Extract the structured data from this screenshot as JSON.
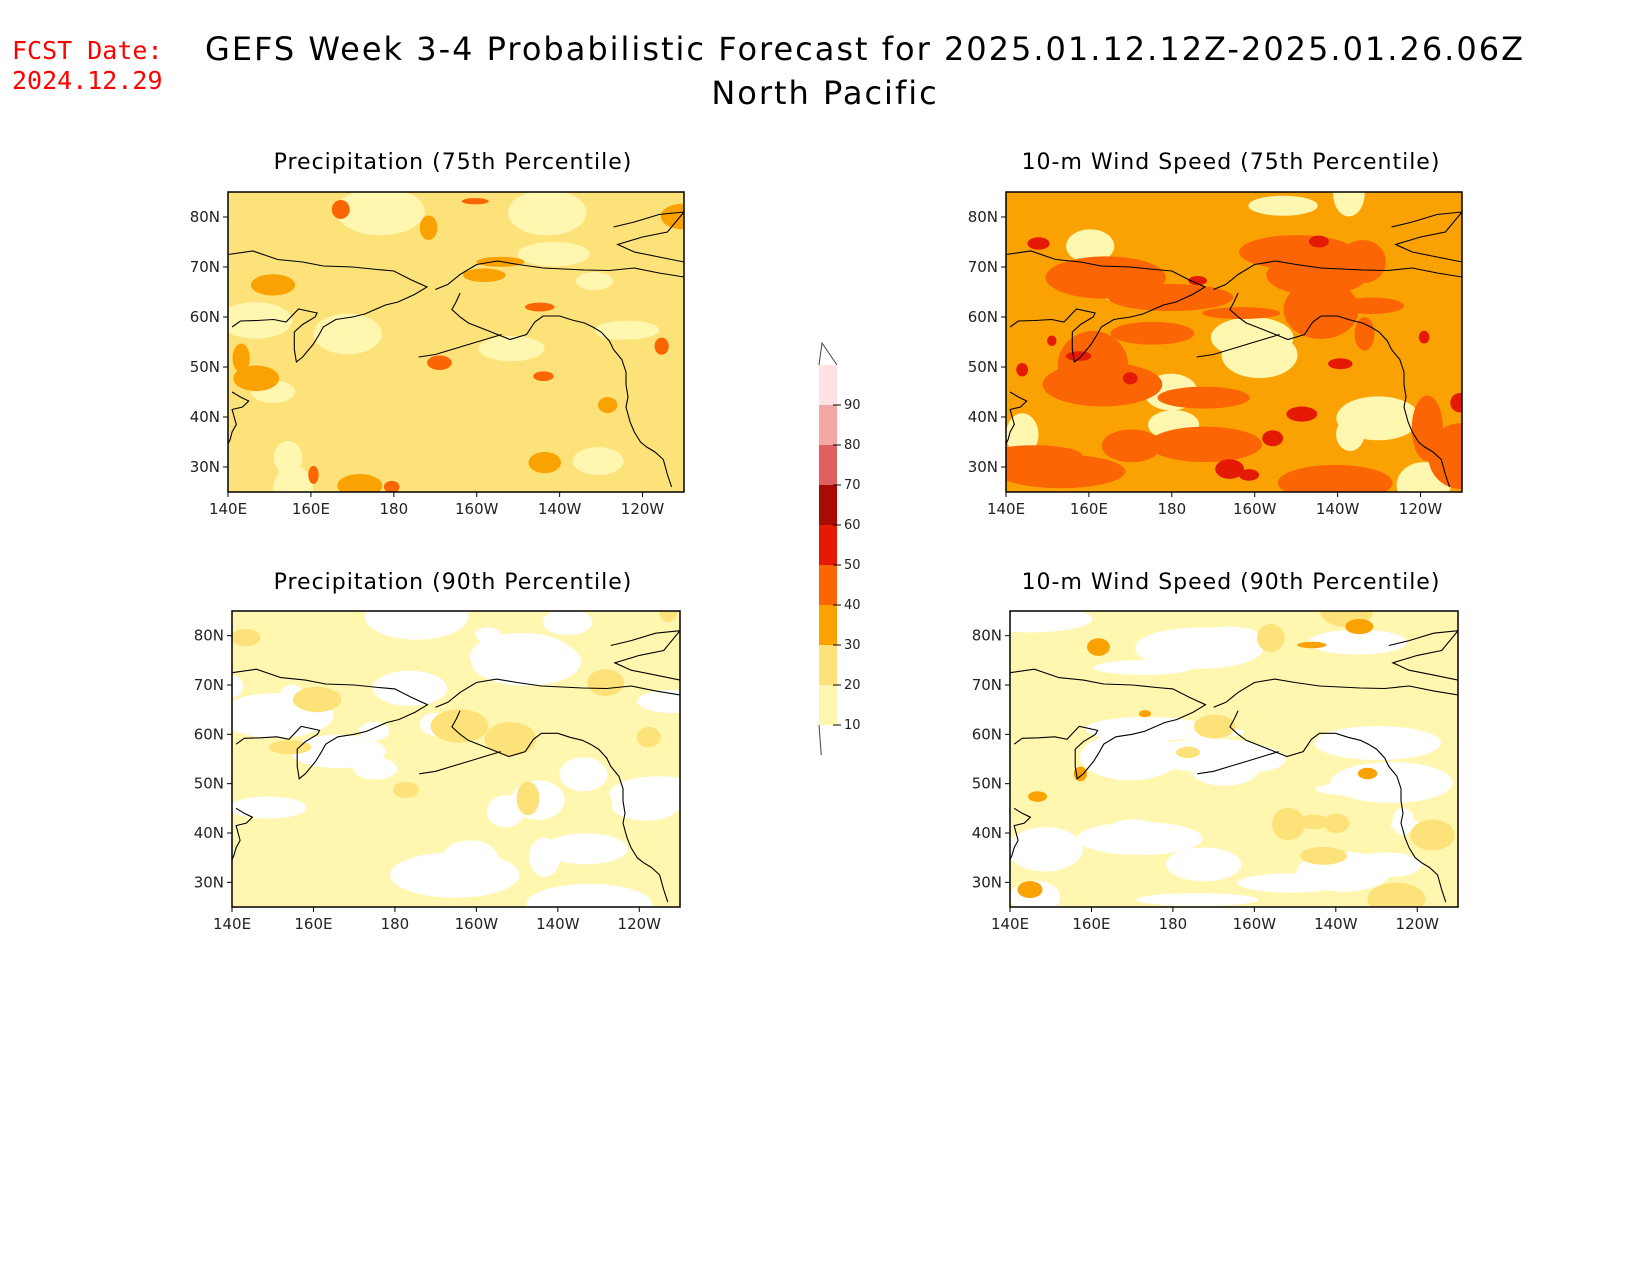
{
  "header": {
    "fcst_label": "FCST Date:",
    "fcst_date": "2024.12.29",
    "title": "GEFS Week 3-4 Probabilistic Forecast for 2025.01.12.12Z-2025.01.26.06Z",
    "region": "North Pacific"
  },
  "axes": {
    "x_ticks": [
      "140E",
      "160E",
      "180",
      "160W",
      "140W",
      "120W"
    ],
    "y_ticks": [
      "80N",
      "70N",
      "60N",
      "50N",
      "40N",
      "30N"
    ],
    "lon_range": [
      140,
      250
    ],
    "lat_range": [
      25,
      85
    ]
  },
  "colorbar": {
    "levels": [
      10,
      20,
      30,
      40,
      50,
      60,
      70,
      80,
      90
    ],
    "colors": [
      "#fff6b0",
      "#fde27a",
      "#fba203",
      "#fb6503",
      "#e41a05",
      "#a80b00",
      "#e06060",
      "#f4a7a7",
      "#fde3e3"
    ]
  },
  "panels": [
    {
      "id": "precip75",
      "title": "Precipitation (75th Percentile)",
      "base_color": "#fde27a",
      "low_color": "#fff6b0",
      "mid_color": "#fba203",
      "high_color": "#fb6503"
    },
    {
      "id": "wind75",
      "title": "10-m Wind Speed (75th Percentile)",
      "base_color": "#fba203",
      "low_color": "#fff6b0",
      "mid_color": "#fb6503",
      "high_color": "#e41a05"
    },
    {
      "id": "precip90",
      "title": "Precipitation (90th Percentile)",
      "base_color": "#fff6b0",
      "low_color": "#ffffff",
      "mid_color": "#fde27a",
      "high_color": "#fde27a"
    },
    {
      "id": "wind90",
      "title": "10-m Wind Speed (90th Percentile)",
      "base_color": "#fff6b0",
      "low_color": "#ffffff",
      "mid_color": "#fde27a",
      "high_color": "#fba203"
    }
  ]
}
